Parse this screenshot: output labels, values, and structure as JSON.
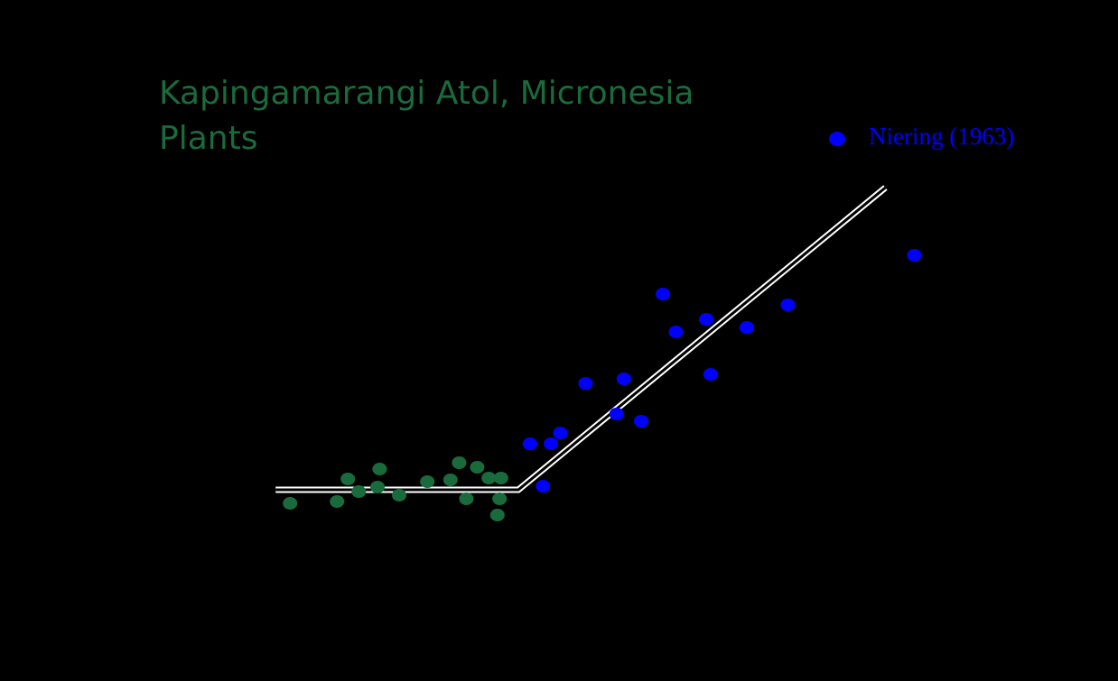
{
  "chart_data": {
    "type": "scatter",
    "title": "Kapingamarangi Atol, Micronesia",
    "subtitle": "Plants",
    "xlim": [
      0,
      100
    ],
    "ylim": [
      0,
      100
    ],
    "series": [
      {
        "color": "#1a6b3c",
        "x": [
          8.9,
          15.4,
          16.9,
          18.4,
          21.3,
          21,
          24,
          27.9,
          31.1,
          32.3,
          33.3,
          34.8,
          36.4,
          38.1,
          37.9,
          37.6
        ],
        "y": [
          18.4,
          18.8,
          23.8,
          21,
          26,
          22,
          20.2,
          23.2,
          23.6,
          27.4,
          19.4,
          26.4,
          24,
          24,
          19.4,
          15.8
        ]
      },
      {
        "name": "Niering (1963)",
        "color": "#0000ff",
        "x": [
          42.1,
          43.9,
          45,
          46.3,
          49.8,
          54.1,
          55.1,
          57.5,
          60.5,
          62.3,
          66.5,
          67.1,
          72.1,
          77.8,
          95.3
        ],
        "y": [
          31.6,
          22.2,
          31.6,
          34,
          45,
          38.2,
          46,
          36.6,
          64.8,
          56.4,
          59.2,
          47,
          57.4,
          62.4,
          73.4
        ]
      }
    ],
    "fit": {
      "color": "#ffffff",
      "x": [
        6.9,
        40.5,
        91.3
      ],
      "y": [
        21.4,
        21.4,
        88.4
      ]
    }
  }
}
